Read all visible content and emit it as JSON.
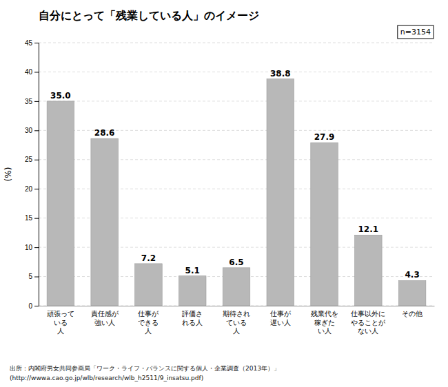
{
  "chart_data": {
    "type": "bar",
    "title": "自分にとって「残業している人」のイメージ",
    "ylabel": "(%)",
    "categories": [
      "頑張って\nいる\n人",
      "責任感が\n強い人",
      "仕事が\nできる\n人",
      "評価さ\nれる人",
      "期待され\nている\n人",
      "仕事が\n遅い人",
      "残業代を\n稼ぎた\nい人",
      "仕事以外に\nやることが\nない人",
      "その他"
    ],
    "values": [
      35.0,
      28.6,
      7.2,
      5.1,
      6.5,
      38.8,
      27.9,
      12.1,
      4.3
    ],
    "value_labels": [
      "35.0",
      "28.6",
      "7.2",
      "5.1",
      "6.5",
      "38.8",
      "27.9",
      "12.1",
      "4.3"
    ],
    "color": "#b8b8b8",
    "ylim": [
      0,
      45.0
    ],
    "yticks": [
      0,
      5,
      10,
      15,
      20,
      25,
      30,
      35,
      40,
      45
    ],
    "grid": true,
    "data_labels": true,
    "annotations": [
      "n=3154",
      "出所：内閣府男女共同参画局「ワーク・ライフ・バランスに関する個人・企業調査（2013年）」",
      "(http://wwwa.cao.go.jp/wlb/research/wlb_h2511/9_insatsu.pdf)"
    ]
  }
}
